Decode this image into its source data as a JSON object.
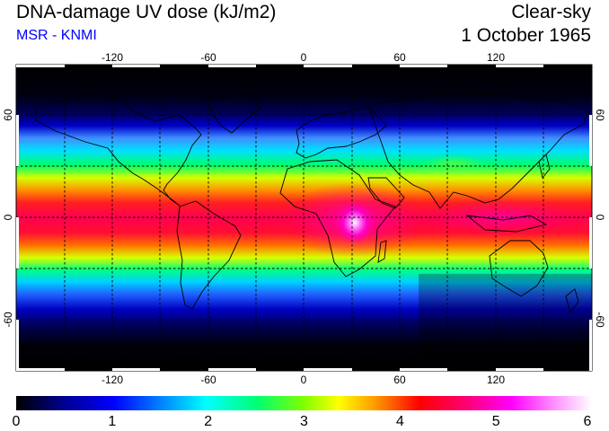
{
  "header": {
    "title": "DNA-damage UV dose (kJ/m2)",
    "subtitle": "MSR - KNMI",
    "sky_condition": "Clear-sky",
    "date": "1 October 1965"
  },
  "map": {
    "projection": "equirectangular",
    "lon_range": [
      -180,
      180
    ],
    "lat_range": [
      -90,
      90
    ],
    "lon_ticks": [
      "-120",
      "-60",
      "0",
      "60",
      "120"
    ],
    "lat_ticks": [
      "60",
      "0",
      "-60"
    ],
    "graticule": "dashed, 30 degree spacing",
    "colors": {
      "ocean_night": "#000000",
      "coastline": "#000000",
      "grid": "#000000"
    }
  },
  "colorbar": {
    "min": 0,
    "max": 6,
    "labels": [
      "0",
      "1",
      "2",
      "3",
      "4",
      "5",
      "6"
    ],
    "stops": [
      "#000000",
      "#00008b",
      "#0000ff",
      "#00bfff",
      "#00ffff",
      "#00ff7f",
      "#7fff00",
      "#ffff00",
      "#ffa500",
      "#ff0000",
      "#ff0077",
      "#ff00ff",
      "#ff99ff",
      "#ffffff"
    ]
  }
}
